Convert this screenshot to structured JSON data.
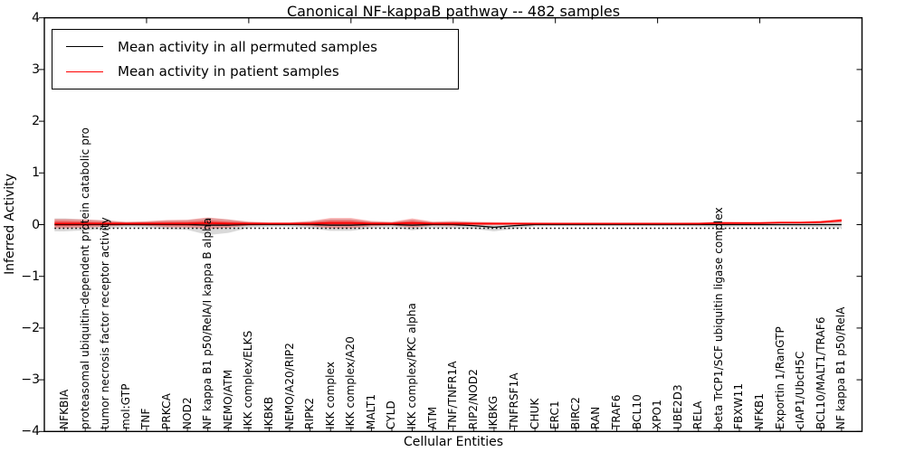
{
  "title": "Canonical NF-kappaB pathway -- 482 samples",
  "axes": {
    "xlabel": "Cellular Entities",
    "ylabel": "Inferred Activity",
    "ytick_labels": [
      "4",
      "3",
      "2",
      "1",
      "0",
      "−1",
      "−2",
      "−3",
      "−4"
    ],
    "ytick_values": [
      4,
      3,
      2,
      1,
      0,
      -1,
      -2,
      -3,
      -4
    ]
  },
  "legend": {
    "items": [
      {
        "label": "Mean activity in all permuted samples",
        "color": "#000000"
      },
      {
        "label": "Mean activity in patient samples",
        "color": "#ff0000"
      }
    ]
  },
  "chart_data": {
    "type": "line",
    "title": "Canonical NF-kappaB pathway -- 482 samples",
    "xlabel": "Cellular Entities",
    "ylabel": "Inferred Activity",
    "xlim": [
      0,
      40
    ],
    "ylim": [
      -4,
      4
    ],
    "grid": false,
    "legend_position": "upper left",
    "x_major_ticks": [
      5,
      10,
      15,
      20,
      25,
      30,
      35
    ],
    "entities": [
      "NFKBIA",
      "proteasomal ubiquitin-dependent protein catabolic pro",
      "tumor necrosis factor receptor activity",
      "mol:GTP",
      "TNF",
      "PRKCA",
      "NOD2",
      "NF kappa B1 p50/RelA/I kappa B alpha",
      "NEMO/ATM",
      "IKK complex/ELKS",
      "IKBKB",
      "NEMO/A20/RIP2",
      "RIPK2",
      "IKK complex",
      "IKK complex/A20",
      "MALT1",
      "CYLD",
      "IKK complex/PKC alpha",
      "ATM",
      "TNF/TNFR1A",
      "RIP2/NOD2",
      "IKBKG",
      "TNFRSF1A",
      "CHUK",
      "ERC1",
      "BIRC2",
      "RAN",
      "TRAF6",
      "BCL10",
      "XPO1",
      "UBE2D3",
      "RELA",
      "beta TrCP1/SCF ubiquitin ligase complex",
      "FBXW11",
      "NFKB1",
      "Exportin 1/RanGTP",
      "cIAP1/UbcH5C",
      "BCL10/MALT1/TRAF6",
      "NF kappa B1 p50/RelA"
    ],
    "series": [
      {
        "name": "Mean activity in all permuted samples",
        "color": "#000000",
        "style": "solid",
        "values": [
          0,
          0,
          0,
          0,
          0,
          0,
          0,
          -0.01,
          -0.01,
          0,
          0,
          0,
          0,
          -0.01,
          -0.01,
          0,
          0,
          -0.01,
          0,
          0,
          -0.02,
          -0.05,
          -0.02,
          0,
          0,
          0,
          0,
          0,
          0,
          0,
          0,
          0,
          0,
          0,
          0,
          0,
          0,
          0,
          0
        ]
      },
      {
        "name": "Mean activity in patient samples",
        "color": "#ff0000",
        "style": "solid",
        "values": [
          0.02,
          0.02,
          0.02,
          0.02,
          0.02,
          0.02,
          0.02,
          0.03,
          0.02,
          0.02,
          0.02,
          0.02,
          0.02,
          0.03,
          0.03,
          0.02,
          0.02,
          0.03,
          0.02,
          0.02,
          0.02,
          0.02,
          0.02,
          0.02,
          0.02,
          0.02,
          0.02,
          0.02,
          0.02,
          0.02,
          0.02,
          0.02,
          0.03,
          0.03,
          0.03,
          0.04,
          0.04,
          0.05,
          0.08
        ]
      }
    ],
    "reference_line": {
      "style": "dotted",
      "color": "#000000",
      "value": -0.07
    },
    "bands": [
      {
        "name": "permuted-range",
        "color": "rgba(0,0,0,0.15)",
        "upper": [
          0.12,
          0.1,
          0.08,
          0.05,
          0.06,
          0.08,
          0.09,
          0.13,
          0.1,
          0.05,
          0.035,
          0.035,
          0.06,
          0.11,
          0.11,
          0.06,
          0.045,
          0.1,
          0.05,
          0.06,
          0.05,
          0.04,
          0.03,
          0.03,
          0.025,
          0.025,
          0.025,
          0.025,
          0.025,
          0.025,
          0.025,
          0.03,
          0.04,
          0.03,
          0.03,
          0.03,
          0.035,
          0.04,
          0.05
        ],
        "lower": [
          -0.13,
          -0.11,
          -0.08,
          -0.05,
          -0.06,
          -0.09,
          -0.1,
          -0.2,
          -0.16,
          -0.06,
          -0.04,
          -0.04,
          -0.07,
          -0.12,
          -0.12,
          -0.07,
          -0.05,
          -0.11,
          -0.06,
          -0.07,
          -0.08,
          -0.13,
          -0.08,
          -0.035,
          -0.03,
          -0.03,
          -0.03,
          -0.03,
          -0.03,
          -0.03,
          -0.03,
          -0.035,
          -0.05,
          -0.035,
          -0.035,
          -0.035,
          -0.04,
          -0.045,
          -0.06
        ]
      },
      {
        "name": "patient-range-outer",
        "color": "rgba(255,0,0,0.28)",
        "halfwidth": [
          0.09,
          0.08,
          0.06,
          0.035,
          0.045,
          0.07,
          0.075,
          0.11,
          0.08,
          0.04,
          0.025,
          0.025,
          0.05,
          0.1,
          0.1,
          0.05,
          0.035,
          0.09,
          0.04,
          0.05,
          0.035,
          0.03,
          0.025,
          0.02,
          0.018,
          0.018,
          0.018,
          0.018,
          0.018,
          0.018,
          0.018,
          0.02,
          0.03,
          0.02,
          0.02,
          0.02,
          0.02,
          0.025,
          0.035
        ]
      },
      {
        "name": "patient-range-inner",
        "color": "rgba(255,0,0,0.40)",
        "halfwidth": [
          0.05,
          0.04,
          0.03,
          0.02,
          0.025,
          0.035,
          0.04,
          0.05,
          0.04,
          0.02,
          0.015,
          0.015,
          0.025,
          0.05,
          0.05,
          0.025,
          0.02,
          0.045,
          0.02,
          0.025,
          0.02,
          0.015,
          0.012,
          0.01,
          0.009,
          0.009,
          0.009,
          0.009,
          0.009,
          0.009,
          0.009,
          0.01,
          0.015,
          0.01,
          0.01,
          0.01,
          0.01,
          0.012,
          0.02
        ]
      }
    ]
  }
}
